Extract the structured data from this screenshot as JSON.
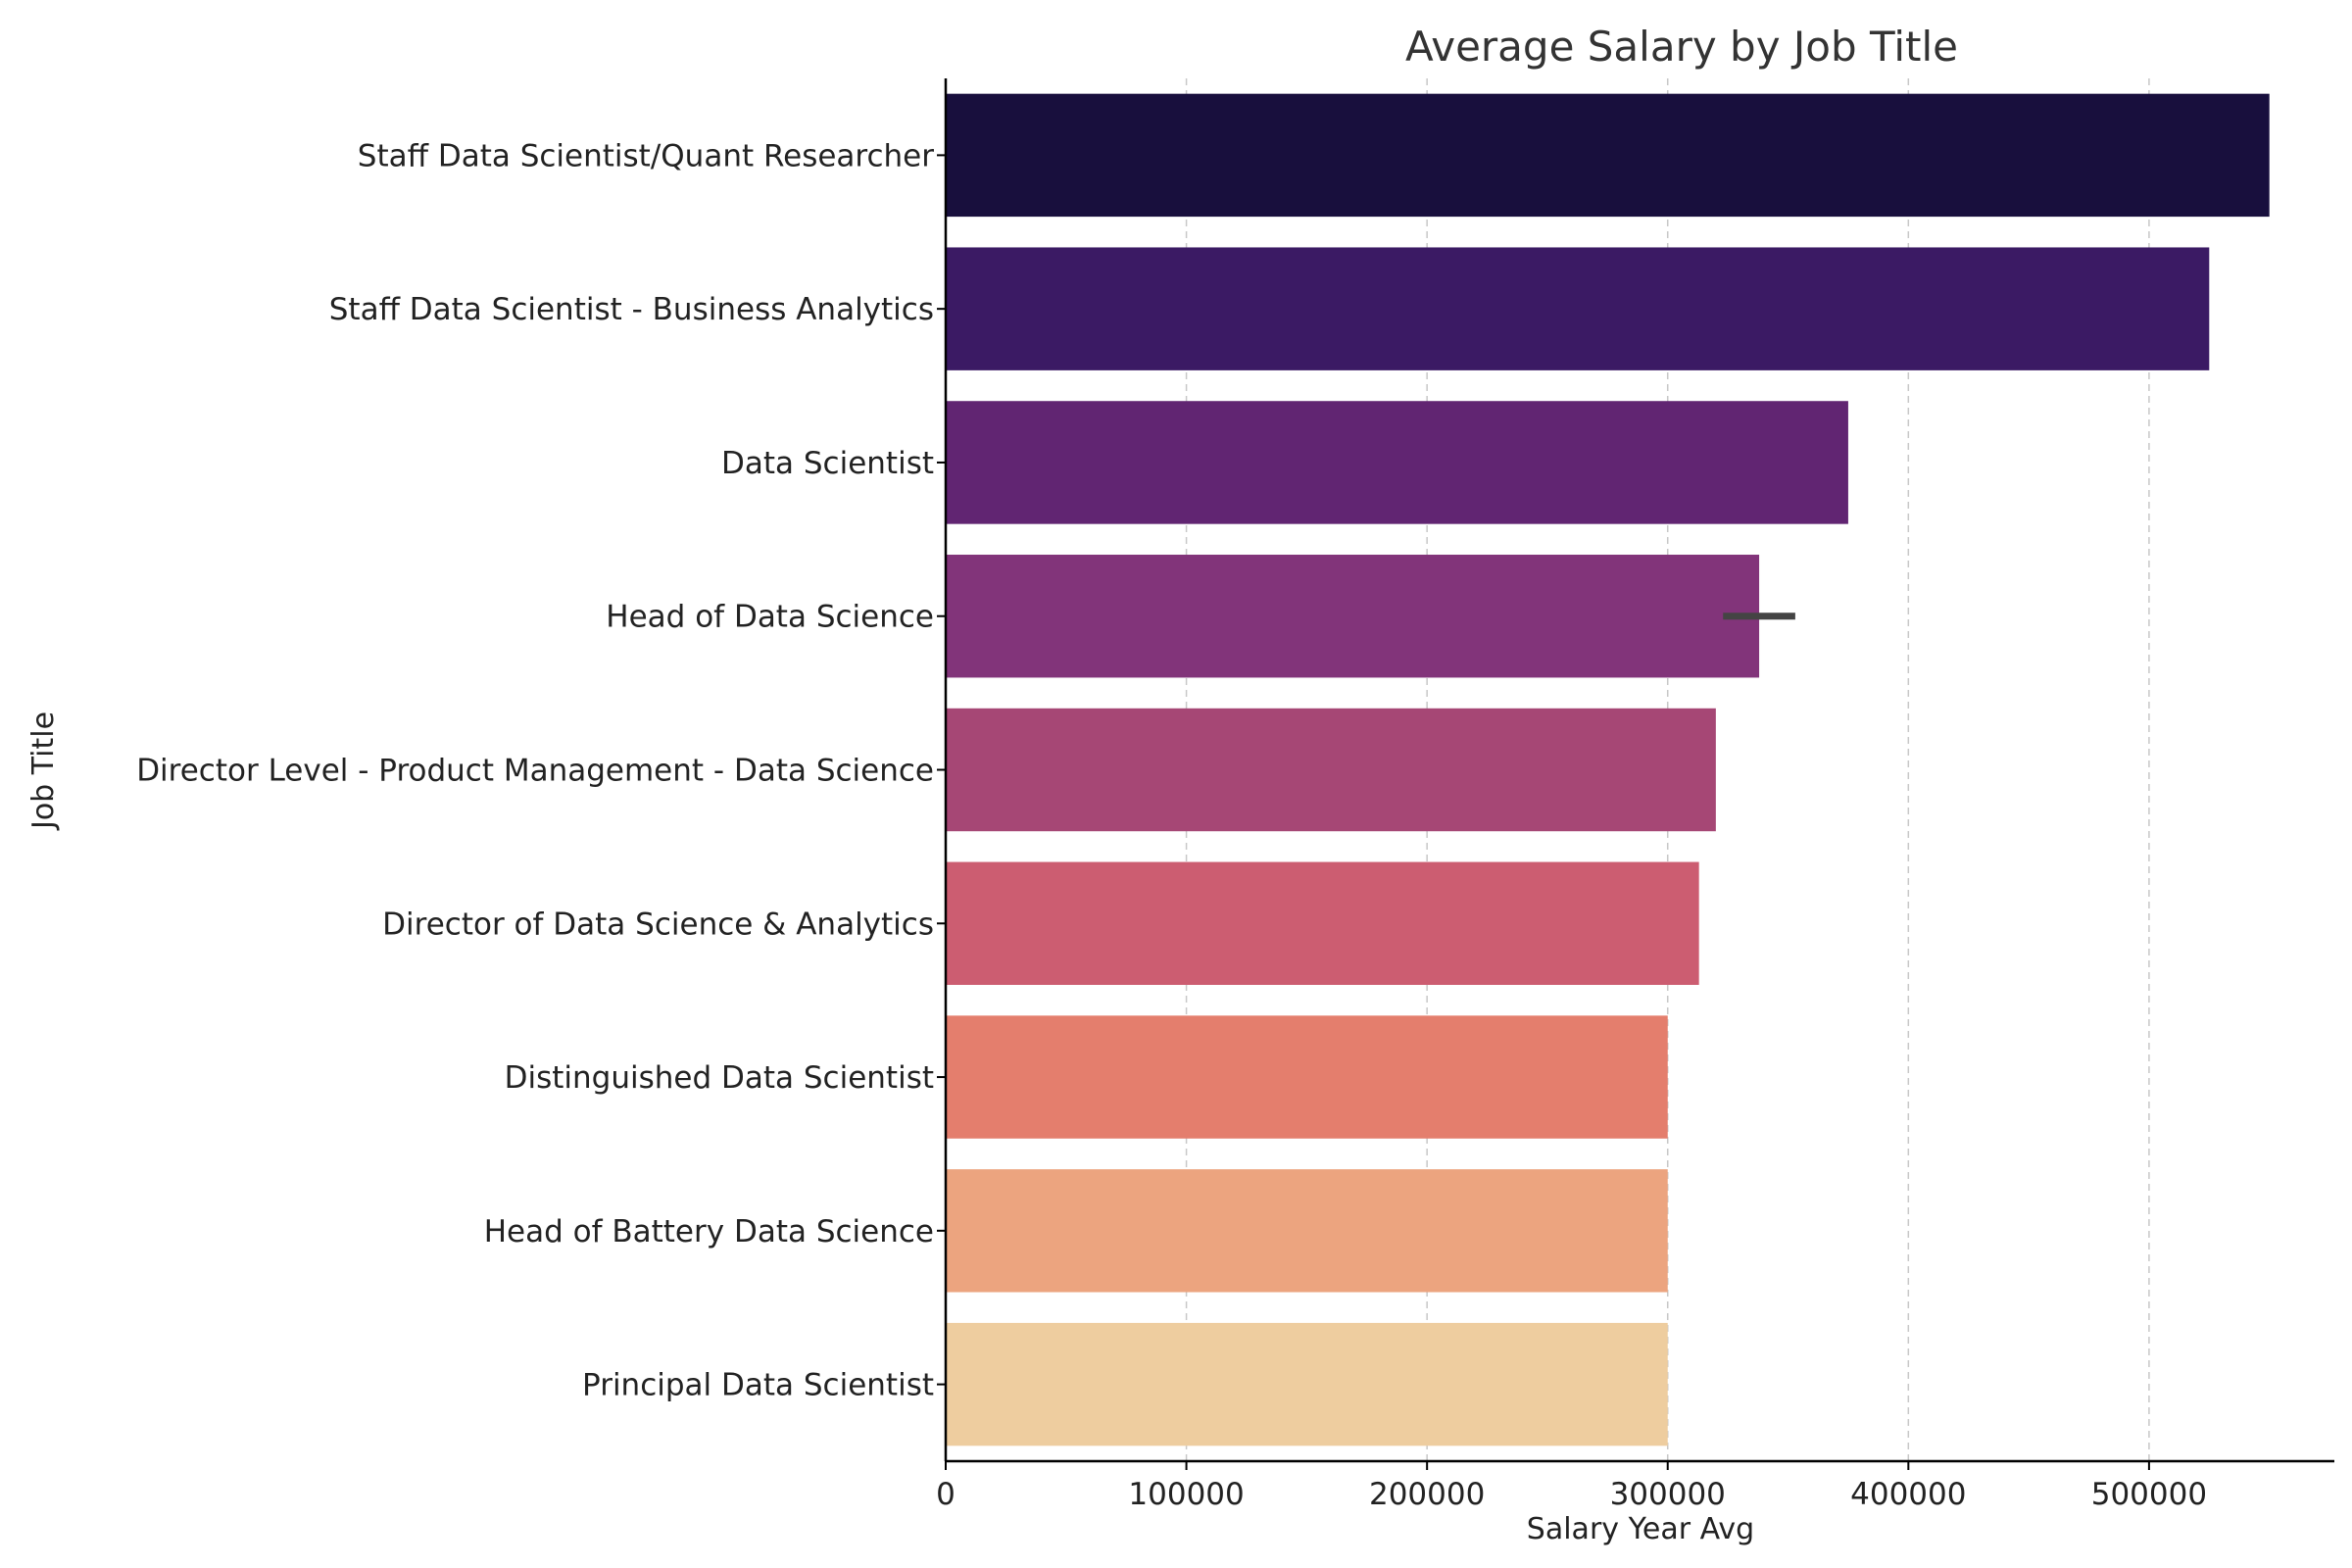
{
  "chart_data": {
    "type": "bar",
    "orientation": "horizontal",
    "title": "Average Salary by Job Title",
    "xlabel": "Salary Year Avg",
    "ylabel": "Job Title",
    "xlim": [
      0,
      577000
    ],
    "xticks": [
      0,
      100000,
      200000,
      300000,
      400000,
      500000
    ],
    "grid": "x-dashed",
    "categories": [
      "Staff Data Scientist/Quant Researcher",
      "Staff Data Scientist - Business Analytics",
      "Data Scientist",
      "Head of Data Science",
      "Director Level - Product Management - Data Science",
      "Director of Data Science & Analytics",
      "Distinguished Data Scientist",
      "Head of Battery Data Science",
      "Principal Data Scientist"
    ],
    "values": [
      550000,
      525000,
      375000,
      338000,
      320000,
      313000,
      300000,
      300000,
      300000
    ],
    "error_bars": [
      null,
      null,
      null,
      [
        323000,
        353000
      ],
      null,
      null,
      null,
      null,
      null
    ],
    "colors": [
      "#180f3d",
      "#3b1a64",
      "#612572",
      "#82347a",
      "#a64775",
      "#cc5d71",
      "#e47e6d",
      "#eca47f",
      "#eecd9f"
    ]
  }
}
